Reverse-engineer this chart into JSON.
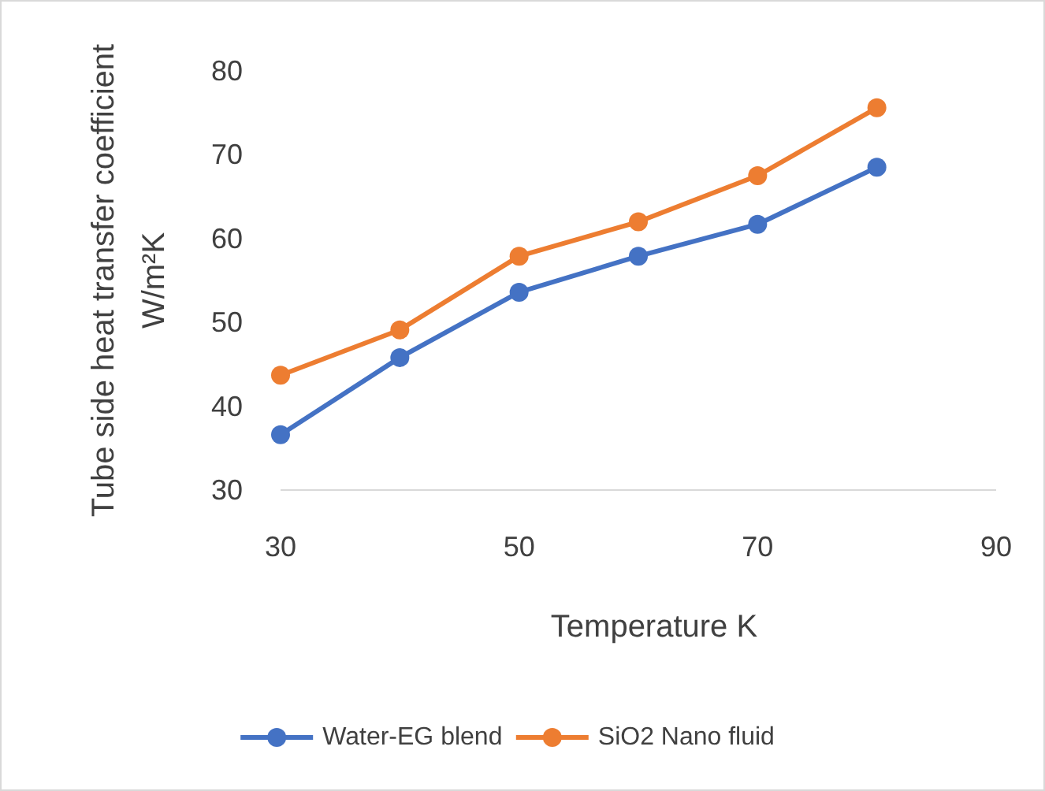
{
  "chart_data": {
    "type": "line",
    "xlabel": "Temperature K",
    "ylabel": "Tube side heat transfer coefficient W/m²K",
    "x": [
      30,
      40,
      50,
      60,
      70,
      80
    ],
    "series": [
      {
        "name": "Water-EG blend",
        "color": "#4472c4",
        "values": [
          36.6,
          45.8,
          53.6,
          57.9,
          61.7,
          68.5
        ]
      },
      {
        "name": "SiO2 Nano fluid",
        "color": "#ed7d31",
        "values": [
          43.7,
          49.1,
          57.9,
          62.0,
          67.5,
          75.6
        ]
      }
    ],
    "xlim": [
      30,
      90
    ],
    "xticks": [
      30,
      50,
      70,
      90
    ],
    "ylim": [
      30,
      80
    ],
    "yticks": [
      30,
      40,
      50,
      60,
      70,
      80
    ],
    "grid": false,
    "legend": "bottom",
    "marker": "circle",
    "line_style": "solid"
  }
}
